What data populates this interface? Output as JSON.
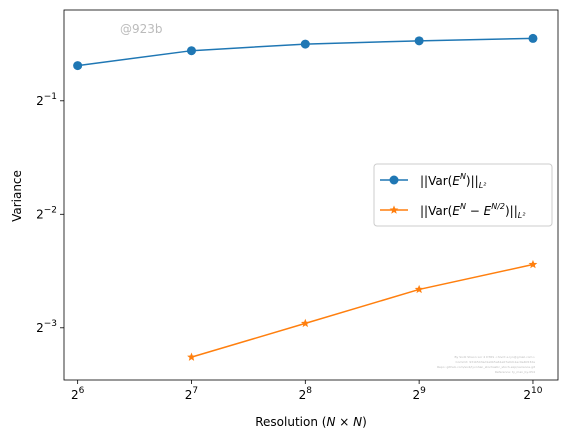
{
  "chart_data": {
    "type": "line",
    "x_scale": "log2",
    "y_scale": "log2",
    "xlim_exp": [
      5.88,
      10.22
    ],
    "ylim_exp": [
      -3.46,
      -0.2
    ],
    "xlabel_prefix": "Resolution (",
    "xlabel_math": "N × N",
    "xlabel_suffix": ")",
    "ylabel": "Variance",
    "x_ticks": [
      {
        "base": "2",
        "exp": "6"
      },
      {
        "base": "2",
        "exp": "7"
      },
      {
        "base": "2",
        "exp": "8"
      },
      {
        "base": "2",
        "exp": "9"
      },
      {
        "base": "2",
        "exp": "10"
      }
    ],
    "y_ticks": [
      {
        "base": "2",
        "exp": "−1",
        "value_exp": -1
      },
      {
        "base": "2",
        "exp": "−2",
        "value_exp": -2
      },
      {
        "base": "2",
        "exp": "−3",
        "value_exp": -3
      }
    ],
    "series": [
      {
        "name": "||Var(E^N)||_{L^2}",
        "color": "#1f77b4",
        "marker": "circle",
        "x": [
          64,
          128,
          256,
          512,
          1024
        ],
        "y": [
          0.62,
          0.679,
          0.707,
          0.721,
          0.732
        ]
      },
      {
        "name": "||Var(E^N − E^{N/2})||_{L^2}",
        "color": "#ff7f0e",
        "marker": "star",
        "x": [
          128,
          256,
          512,
          1024
        ],
        "y": [
          0.1045,
          0.1284,
          0.158,
          0.184
        ]
      }
    ],
    "legend_location": "center-right",
    "grid": false
  },
  "watermark": "@923b",
  "legend": {
    "entry1": {
      "pre": "||Var(",
      "E": "E",
      "sup": "N",
      "post": ")||",
      "sub": "L²"
    },
    "entry2": {
      "pre": "||Var(",
      "E1": "E",
      "sup1": "N",
      "minus": " − ",
      "E2": "E",
      "sup2": "N/2",
      "post": ")||",
      "sub": "L²"
    }
  },
  "fine_print": [
    "By Sivlli Shaon Lor 4 D7RS <hivrit e.lyn@gmail.com>",
    "Commit: 931b543ad1a0b5a61e07a0cb1ec9e4b532a",
    "Repo: github.com/sivli/lyvnhan_stochastic_stoch-exp/variance.git",
    "Reference: ty_man_by-054"
  ]
}
